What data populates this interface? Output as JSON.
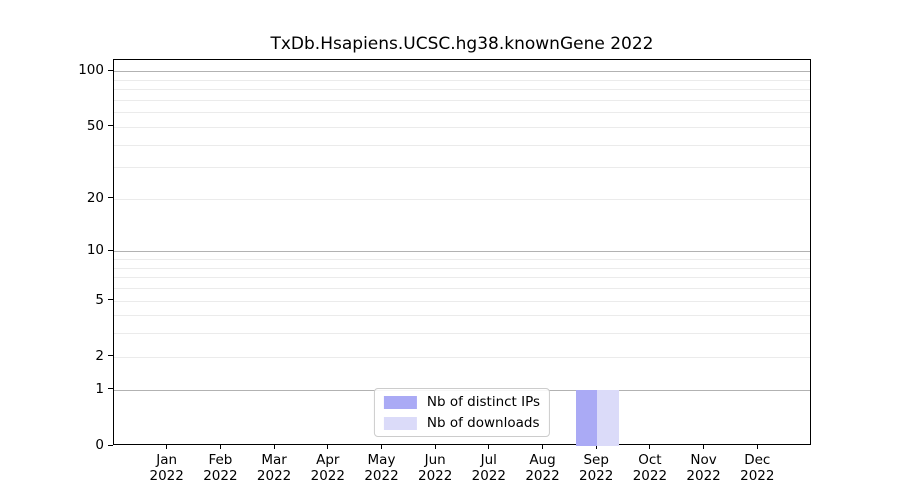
{
  "figure": {
    "background": "#ffffff",
    "axes_color": "#000000"
  },
  "chart_data": {
    "type": "bar",
    "title": "TxDb.Hsapiens.UCSC.hg38.knownGene 2022",
    "categories": [
      "Jan 2022",
      "Feb 2022",
      "Mar 2022",
      "Apr 2022",
      "May 2022",
      "Jun 2022",
      "Jul 2022",
      "Aug 2022",
      "Sep 2022",
      "Oct 2022",
      "Nov 2022",
      "Dec 2022"
    ],
    "series": [
      {
        "name": "Nb of distinct IPs",
        "color": "#aaaaf5",
        "values": [
          0,
          0,
          0,
          0,
          0,
          0,
          0,
          0,
          1,
          0,
          0,
          0
        ]
      },
      {
        "name": "Nb of downloads",
        "color": "#dbdbf9",
        "values": [
          0,
          0,
          0,
          0,
          0,
          0,
          0,
          0,
          1,
          0,
          0,
          0
        ]
      }
    ],
    "xlabel": "",
    "ylabel": "",
    "yscale": "log1p",
    "ylim": [
      0,
      115
    ],
    "yticks_labeled": [
      0,
      1,
      2,
      5,
      10,
      20,
      50,
      100
    ],
    "grid_major_values": [
      1,
      10,
      100
    ],
    "grid_minor_values": [
      2,
      3,
      4,
      5,
      6,
      7,
      8,
      9,
      20,
      30,
      40,
      50,
      60,
      70,
      80,
      90
    ],
    "grid_major_color": "#b2b2b2",
    "grid_minor_color": "#ebebeb",
    "grid": "horizontal",
    "legend_position": "lower center"
  }
}
